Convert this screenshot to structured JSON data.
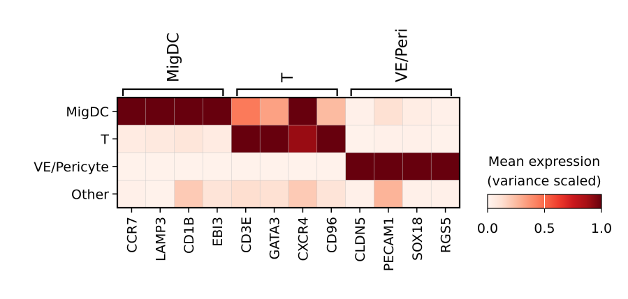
{
  "chart_data": {
    "type": "heatmap",
    "title": "",
    "xlabel": "",
    "ylabel": "",
    "rows": [
      "MigDC",
      "T",
      "VE/Pericyte",
      "Other"
    ],
    "columns": [
      "CCR7",
      "LAMP3",
      "CD1B",
      "EBI3",
      "CD3E",
      "GATA3",
      "CXCR4",
      "CD96",
      "CLDN5",
      "PECAM1",
      "SOX18",
      "RGS5"
    ],
    "groups": [
      {
        "label": "MigDC",
        "columns": [
          "CCR7",
          "LAMP3",
          "CD1B",
          "EBI3"
        ]
      },
      {
        "label": "T",
        "columns": [
          "CD3E",
          "GATA3",
          "CXCR4",
          "CD96"
        ]
      },
      {
        "label": "VE/Peri",
        "columns": [
          "CLDN5",
          "PECAM1",
          "SOX18",
          "RGS5"
        ]
      }
    ],
    "values": [
      [
        1.0,
        1.0,
        1.0,
        1.0,
        0.45,
        0.33,
        1.0,
        0.25,
        0.03,
        0.12,
        0.05,
        0.03
      ],
      [
        0.06,
        0.07,
        0.09,
        0.06,
        1.0,
        1.0,
        0.9,
        1.0,
        0.02,
        0.03,
        0.03,
        0.02
      ],
      [
        0.02,
        0.02,
        0.02,
        0.02,
        0.02,
        0.02,
        0.02,
        0.02,
        1.0,
        1.0,
        1.0,
        1.0
      ],
      [
        0.03,
        0.02,
        0.2,
        0.1,
        0.13,
        0.12,
        0.2,
        0.1,
        0.03,
        0.27,
        0.03,
        0.03
      ]
    ],
    "colormap": "Reds",
    "vmin": 0.0,
    "vmax": 1.0,
    "colorbar": {
      "title_line1": "Mean expression",
      "title_line2": "(variance scaled)",
      "ticks": [
        "0.0",
        "0.5",
        "1.0"
      ],
      "tick_values": [
        0.0,
        0.5,
        1.0
      ]
    }
  }
}
